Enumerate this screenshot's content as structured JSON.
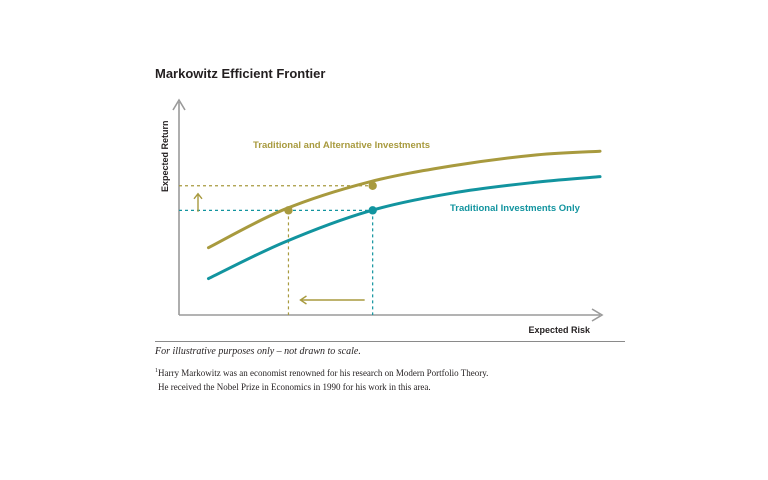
{
  "chart_data": {
    "type": "line",
    "title": "Markowitz Efficient Frontier",
    "xlabel": "Expected Risk",
    "ylabel": "Expected Return",
    "series": [
      {
        "name": "Traditional and Alternative Investments",
        "color": "#a89a3e",
        "x": [
          0.07,
          0.25,
          0.45,
          0.65,
          0.85,
          1.0
        ],
        "y": [
          0.37,
          0.58,
          0.73,
          0.82,
          0.88,
          0.9
        ]
      },
      {
        "name": "Traditional Investments Only",
        "color": "#12949f",
        "x": [
          0.07,
          0.25,
          0.45,
          0.65,
          0.85,
          1.0
        ],
        "y": [
          0.2,
          0.4,
          0.57,
          0.67,
          0.73,
          0.76
        ]
      }
    ],
    "annotations": {
      "points": [
        {
          "series": 0,
          "x": 0.26,
          "y": 0.575
        },
        {
          "series": 0,
          "x": 0.46,
          "y": 0.71
        },
        {
          "series": 1,
          "x": 0.46,
          "y": 0.575
        }
      ],
      "up_arrow": {
        "color": "#a89a3e"
      },
      "left_arrow": {
        "color": "#a89a3e"
      }
    },
    "xlim": [
      0,
      1.05
    ],
    "ylim": [
      0,
      1.05
    ],
    "grid": false,
    "legend": "inline labels"
  },
  "caption": "For illustrative purposes only – not drawn to scale.",
  "footnote": {
    "marker": "1",
    "line1": "Harry Markowitz was an economist renowned for his research on Modern Portfolio Theory.",
    "line2": "He received the Nobel Prize in Economics in 1990 for his work in this area."
  }
}
